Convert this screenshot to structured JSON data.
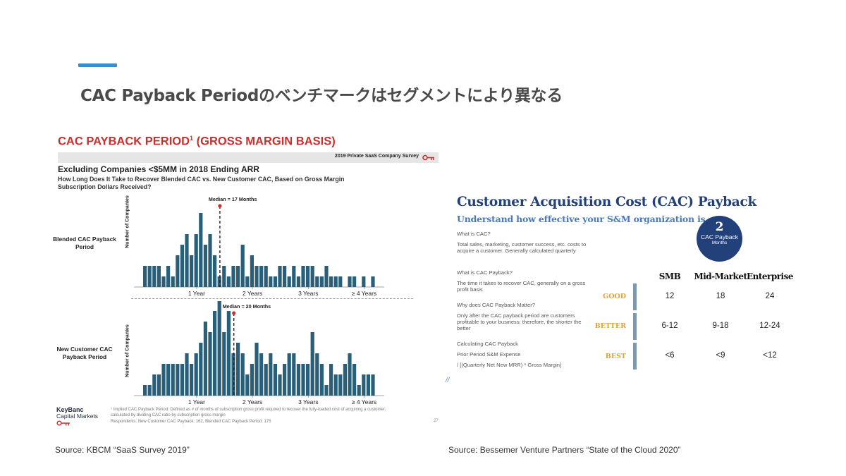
{
  "slide": {
    "title": "CAC Payback Periodのベンチマークはセグメントにより異なる",
    "colors": {
      "accent": "#3b8ec9",
      "bar": "#2a5f7a",
      "kb_red": "#c8312f",
      "bvp_navy": "#22407a",
      "bvp_orange": "#e0a23a"
    }
  },
  "left": {
    "title": "CAC PAYBACK PERIOD",
    "title_sup": "1",
    "title_suffix": " (GROSS MARGIN BASIS)",
    "survey_tag": "2019 Private SaaS Company Survey",
    "subtitle": "Excluding Companies <$5MM in 2018 Ending ARR",
    "question": "How Long Does It Take to Recover Blended CAC vs. New Customer CAC, Based on Gross Margin Subscription Dollars Received?",
    "logo_line1": "KeyBanc",
    "logo_line2": "Capital Markets",
    "footnote": "¹ Implied CAC Payback Period: Defined as # of months of subscription gross profit required to recover the fully-loaded cost of acquiring a customer; calculated by dividing CAC ratio by subscription gross margin",
    "respondents": "Respondents: New Customer CAC Payback: 162, Blended CAC Payback Period: 175",
    "page_number": "27",
    "source": "Source: KBCM “SaaS Survey 2019”"
  },
  "chart_data": [
    {
      "type": "bar",
      "row_label": "Blended CAC Payback Period",
      "ylabel": "Number of Companies",
      "xtick_labels": [
        "1 Year",
        "2 Years",
        "3 Years",
        "≥ 4 Years"
      ],
      "xtick_months": [
        12,
        24,
        36,
        48
      ],
      "median_label": "Median = 17 Months",
      "median_months": 17,
      "values": [
        2,
        2,
        2,
        2,
        1,
        2,
        1,
        3,
        4,
        5,
        3,
        5,
        7,
        4,
        5,
        3,
        1,
        2,
        1,
        2,
        2,
        4,
        1,
        3,
        2,
        2,
        2,
        1,
        1,
        2,
        2,
        1,
        2,
        1,
        2,
        2,
        2,
        1,
        1,
        2,
        1,
        1,
        1,
        0,
        1,
        1,
        0,
        1,
        0,
        1
      ]
    },
    {
      "type": "bar",
      "row_label": "New Customer CAC Payback Period",
      "ylabel": "Number of Companies",
      "xtick_labels": [
        "1 Year",
        "2 Years",
        "3 Years",
        "≥ 4 Years"
      ],
      "xtick_months": [
        12,
        24,
        36,
        48
      ],
      "median_label": "Median = 20 Months",
      "median_months": 20,
      "values": [
        1,
        1,
        2,
        2,
        3,
        3,
        3,
        3,
        3,
        4,
        3,
        4,
        5,
        7,
        6,
        8,
        9,
        6,
        8,
        4,
        5,
        4,
        2,
        3,
        5,
        4,
        3,
        4,
        3,
        2,
        3,
        4,
        4,
        3,
        3,
        3,
        6,
        4,
        3,
        1,
        3,
        2,
        2,
        3,
        4,
        3,
        1,
        2,
        2,
        2
      ]
    }
  ],
  "right": {
    "title": "Customer Acquisition Cost (CAC) Payback",
    "subtitle": "Understand how effective your S&M organization is",
    "circle_value": "2",
    "circle_label": "CAC Payback",
    "circle_unit": "Months",
    "q1": "What is CAC?",
    "a1": "Total sales, marketing, customer success, etc. costs to acquire a customer. Generally calculated quarterly",
    "q2": "What is CAC Payback?",
    "a2": "The time it takes to recover CAC, generally on a gross profit basis",
    "q3": "Why does CAC Payback Matter?",
    "a3": "Only after the CAC payback period are customers profitable to your business; therefore, the shorter the better",
    "q4": "Calculating CAC Payback",
    "a4_line1": "Prior Period S&M Expense",
    "a4_line2": "/ [(Quarterly Net New MRR) * Gross Margin]",
    "columns": [
      "SMB",
      "Mid-Market",
      "Enterprise"
    ],
    "rows": [
      {
        "label": "GOOD",
        "values": [
          "12",
          "18",
          "24"
        ]
      },
      {
        "label": "BETTER",
        "values": [
          "6-12",
          "9-18",
          "12-24"
        ]
      },
      {
        "label": "BEST",
        "values": [
          "<6",
          "<9",
          "<12"
        ]
      }
    ],
    "source": "Source: Bessemer Venture Partners “State of the Cloud 2020”"
  }
}
